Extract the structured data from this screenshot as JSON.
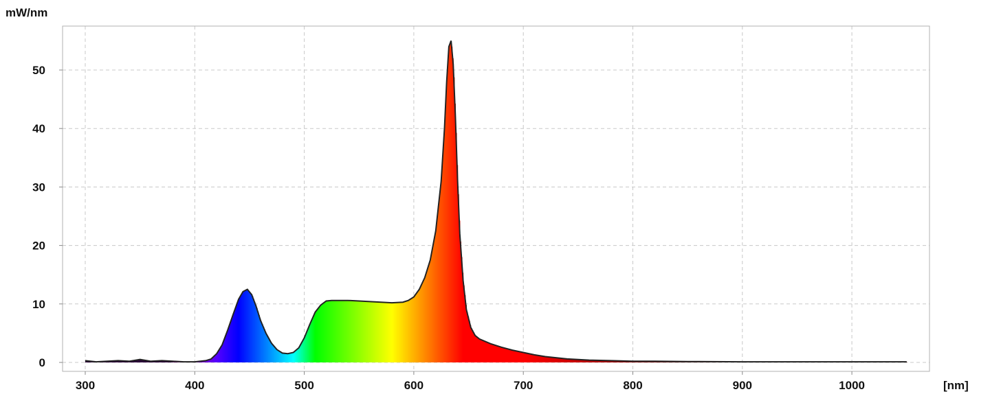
{
  "chart_data": {
    "type": "area",
    "title": "",
    "ylabel": "mW/nm",
    "xlabel": "[nm]",
    "xlim": [
      280,
      1350
    ],
    "ylim": [
      -1,
      57
    ],
    "x_ticks": [
      300,
      400,
      500,
      600,
      700,
      800,
      900,
      1000
    ],
    "y_ticks": [
      0,
      10,
      20,
      30,
      40,
      50
    ],
    "x_tick_labels": [
      "300",
      "400",
      "500",
      "600",
      "700",
      "800",
      "900",
      "1000"
    ],
    "y_tick_labels": [
      "0",
      "10",
      "20",
      "30",
      "40",
      "50"
    ],
    "grid": true,
    "legend": "none",
    "fill": "visible-spectrum gradient",
    "line_color": "#222222",
    "series": [
      {
        "x": [
          300,
          310,
          320,
          330,
          340,
          350,
          360,
          370,
          380,
          390,
          400,
          405,
          410,
          415,
          420,
          425,
          430,
          435,
          440,
          444,
          448,
          452,
          456,
          460,
          465,
          470,
          475,
          480,
          485,
          490,
          495,
          500,
          505,
          510,
          515,
          520,
          525,
          530,
          540,
          550,
          560,
          570,
          580,
          590,
          595,
          600,
          605,
          610,
          615,
          620,
          625,
          628,
          630,
          632,
          634,
          636,
          638,
          640,
          642,
          645,
          648,
          652,
          656,
          660,
          670,
          680,
          690,
          700,
          710,
          720,
          740,
          760,
          780,
          800,
          820,
          850,
          900,
          950,
          1000,
          1050
        ],
        "y": [
          0.3,
          0.1,
          0.2,
          0.3,
          0.2,
          0.5,
          0.2,
          0.3,
          0.2,
          0.1,
          0.1,
          0.2,
          0.3,
          0.6,
          1.5,
          3.0,
          5.5,
          8.2,
          10.8,
          12.1,
          12.5,
          11.6,
          9.6,
          7.2,
          5.0,
          3.3,
          2.2,
          1.6,
          1.5,
          1.7,
          2.5,
          4.2,
          6.5,
          8.6,
          9.8,
          10.5,
          10.6,
          10.6,
          10.6,
          10.5,
          10.4,
          10.3,
          10.2,
          10.3,
          10.6,
          11.2,
          12.5,
          14.5,
          17.5,
          22.5,
          31.0,
          40.0,
          48.0,
          54.0,
          55.0,
          51.0,
          42.0,
          31.0,
          22.0,
          14.0,
          9.0,
          6.0,
          4.6,
          4.0,
          3.2,
          2.6,
          2.1,
          1.7,
          1.3,
          1.0,
          0.6,
          0.4,
          0.3,
          0.2,
          0.2,
          0.15,
          0.1,
          0.1,
          0.1,
          0.1
        ]
      }
    ]
  }
}
